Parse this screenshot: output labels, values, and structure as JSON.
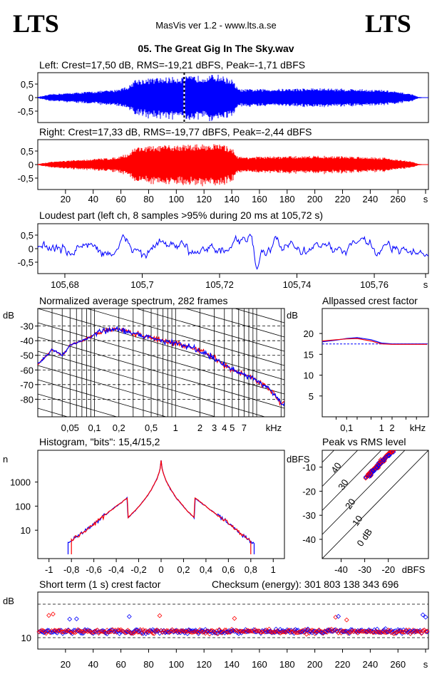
{
  "header": {
    "logo_left": "LTS",
    "logo_right": "LTS",
    "version": "MasVis ver 1.2 - www.lts.a.se",
    "file_title": "05. The Great Gig In The Sky.wav"
  },
  "colors": {
    "left": "#0000ff",
    "right": "#ff0000",
    "marker": "#000000"
  },
  "panels": {
    "left_wave": {
      "title": "Left: Crest=17,50 dB, RMS=-19,21 dBFS, Peak=-1,71 dBFS"
    },
    "right_wave": {
      "title": "Right: Crest=17,33 dB, RMS=-19,77 dBFS, Peak=-2,44 dBFS"
    },
    "loudest": {
      "title": "Loudest part (left  ch, 8 samples >95% during 20 ms at 105,72 s)"
    },
    "spectrum": {
      "title": "Normalized average spectrum, 282 frames"
    },
    "allpass": {
      "title": "Allpassed crest factor"
    },
    "histogram": {
      "title": "Histogram, \"bits\": 15,4/15,2"
    },
    "peak_rms": {
      "title": "Peak vs RMS level"
    },
    "crest": {
      "title": "Short term (1 s) crest factor",
      "checksum": "Checksum (energy):   301 803 138 343 696"
    }
  },
  "chart_data": [
    {
      "type": "line",
      "panel": "left_wave",
      "title": "Left: Crest=17,50 dB, RMS=-19,21 dBFS, Peak=-1,71 dBFS",
      "ylim": [
        -1,
        1
      ],
      "xlim": [
        0,
        282
      ],
      "y_ticks": [
        "0,5",
        "0",
        "-0,5"
      ],
      "marker_x": 105.72,
      "envelope": {
        "t": [
          0,
          10,
          30,
          55,
          66,
          70,
          90,
          110,
          130,
          140,
          145,
          180,
          200,
          225,
          250,
          270,
          275,
          282
        ],
        "amp": [
          0.02,
          0.12,
          0.18,
          0.26,
          0.4,
          0.62,
          0.68,
          0.72,
          0.78,
          0.62,
          0.28,
          0.3,
          0.32,
          0.3,
          0.26,
          0.12,
          0.02,
          0.0
        ]
      }
    },
    {
      "type": "line",
      "panel": "right_wave",
      "title": "Right: Crest=17,33 dB, RMS=-19,77 dBFS, Peak=-2,44 dBFS",
      "ylim": [
        -1,
        1
      ],
      "xlim": [
        0,
        282
      ],
      "x_ticks": [
        "20",
        "40",
        "60",
        "80",
        "100",
        "120",
        "140",
        "160",
        "180",
        "200",
        "220",
        "240",
        "260",
        "s"
      ],
      "y_ticks": [
        "0,5",
        "0",
        "-0,5"
      ],
      "envelope": {
        "t": [
          0,
          10,
          30,
          55,
          66,
          70,
          90,
          110,
          130,
          140,
          145,
          180,
          200,
          225,
          250,
          270,
          275,
          282
        ],
        "amp": [
          0.02,
          0.1,
          0.16,
          0.24,
          0.38,
          0.6,
          0.64,
          0.68,
          0.7,
          0.58,
          0.26,
          0.28,
          0.3,
          0.28,
          0.24,
          0.1,
          0.02,
          0.0
        ]
      }
    },
    {
      "type": "line",
      "panel": "loudest",
      "title": "Loudest part (left  ch, 8 samples >95% during 20 ms at 105,72 s)",
      "xlim": [
        105.673,
        105.774
      ],
      "ylim": [
        -1,
        1
      ],
      "x_ticks": [
        "105,68",
        "105,7",
        "105,72",
        "105,74",
        "105,76",
        "s"
      ],
      "y_ticks": [
        "0,5",
        "0",
        "-0,5"
      ]
    },
    {
      "type": "line",
      "panel": "spectrum",
      "title": "Normalized average spectrum, 282 frames",
      "ylabel": "dB",
      "y_ticks": [
        "-30",
        "-40",
        "-50",
        "-60",
        "-70",
        "-80"
      ],
      "x_ticks": [
        "0,05",
        "0,1",
        "0,2",
        "0,5",
        "1",
        "2",
        "3",
        "4",
        "5",
        "7",
        "kHz"
      ],
      "ylim": [
        -92,
        -18
      ],
      "freq_khz": [
        0.02,
        0.03,
        0.04,
        0.05,
        0.07,
        0.1,
        0.13,
        0.2,
        0.3,
        0.5,
        0.7,
        1,
        1.5,
        2,
        3,
        4,
        5,
        7,
        10,
        15,
        20
      ],
      "level_db": [
        -56,
        -46,
        -50,
        -43,
        -40,
        -36,
        -33,
        -32,
        -35,
        -38,
        -40,
        -42,
        -44,
        -47,
        -52,
        -57,
        -60,
        -63,
        -67,
        -74,
        -83
      ]
    },
    {
      "type": "line",
      "panel": "allpass",
      "title": "Allpassed crest factor",
      "ylabel": "dB",
      "y_ticks": [
        "20",
        "15",
        "10",
        "5"
      ],
      "x_ticks": [
        "0,1",
        "1",
        "2",
        "kHz"
      ],
      "ylim": [
        0,
        26
      ],
      "series": [
        {
          "values_khz": [
            0.02,
            0.05,
            0.1,
            0.2,
            0.5,
            1,
            2,
            5,
            10,
            20
          ],
          "values_db": [
            18,
            18.4,
            18.8,
            19,
            18.5,
            17.7,
            17.5,
            17.5,
            17.5,
            17.5
          ]
        },
        {
          "values_khz": [
            0.02,
            0.05,
            0.1,
            0.2,
            0.5,
            1,
            2,
            5,
            10,
            20
          ],
          "values_db": [
            18.2,
            18.5,
            18.7,
            18.8,
            18.2,
            17.5,
            17.4,
            17.4,
            17.4,
            17.4
          ]
        }
      ],
      "reference_db": 17.5
    },
    {
      "type": "line",
      "panel": "histogram",
      "title": "Histogram, \"bits\": 15,4/15,2",
      "ylabel": "n",
      "y_ticks": [
        "1000",
        "100",
        "10"
      ],
      "x_ticks": [
        "-1",
        "-0,8",
        "-0,6",
        "-0,4",
        "-0,2",
        "0",
        "0,2",
        "0,4",
        "0,6",
        "0,8",
        "1"
      ],
      "xlim": [
        -1.1,
        1.1
      ],
      "log_range": [
        0,
        4
      ]
    },
    {
      "type": "scatter",
      "panel": "peak_rms",
      "title": "Peak vs RMS level",
      "ylabel": "dBFS",
      "xlabel": "dBFS",
      "y_ticks": [
        "-10",
        "-20",
        "-30",
        "-40"
      ],
      "x_ticks": [
        "-40",
        "-30",
        "-20"
      ],
      "diagonal_labels": [
        "40",
        "30",
        "20",
        "10",
        "0 dB"
      ],
      "xlim": [
        -48,
        -3
      ],
      "ylim": [
        -48,
        -3
      ],
      "crest_lines_db": [
        40,
        30,
        20,
        10,
        0
      ]
    },
    {
      "type": "scatter",
      "panel": "crest",
      "title": "Short term (1 s) crest factor",
      "ylabel": "dB",
      "y_ticks": [
        "10"
      ],
      "x_ticks": [
        "20",
        "40",
        "60",
        "80",
        "100",
        "120",
        "140",
        "160",
        "180",
        "200",
        "220",
        "240",
        "260",
        "s"
      ],
      "xlim": [
        0,
        282
      ],
      "ylim": [
        5,
        25
      ]
    }
  ]
}
